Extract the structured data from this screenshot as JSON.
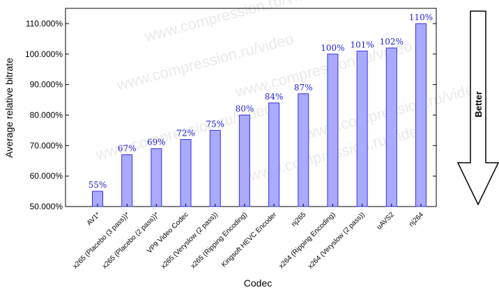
{
  "chart_data": {
    "type": "bar",
    "xlabel": "Codec",
    "ylabel": "Average relative bitrate",
    "ylim": [
      50,
      115
    ],
    "yticks": [
      50,
      60,
      70,
      80,
      90,
      100,
      110
    ],
    "ytick_labels": [
      "50.000%",
      "60.000%",
      "70.000%",
      "80.000%",
      "90.000%",
      "100.000%",
      "110.000%"
    ],
    "categories": [
      "AV1*",
      "x265 (Placebo (3 pass))*",
      "x265 (Placebo (2 pass))*",
      "VP9 Video Codec",
      "x265 (Veryslow (2 pass))",
      "x265 (Ripping Encoding)",
      "Kingsoft HEVC Encoder",
      "nj265",
      "x264 (Ripping Encoding)",
      "x264 (Veryslow (2 pass))",
      "uAVS2",
      "nj264"
    ],
    "values": [
      55,
      67,
      69,
      72,
      75,
      80,
      84,
      87,
      100,
      101,
      102,
      110
    ],
    "data_labels": [
      "55%",
      "67%",
      "69%",
      "72%",
      "75%",
      "80%",
      "84%",
      "87%",
      "100%",
      "101%",
      "102%",
      "110%"
    ],
    "bar_fill": "#aaaaff",
    "bar_stroke": "#3333dd",
    "label_color": "#1f1fd6",
    "grid": false
  },
  "arrow_label": "Better",
  "watermark": "www.compression.ru/video"
}
